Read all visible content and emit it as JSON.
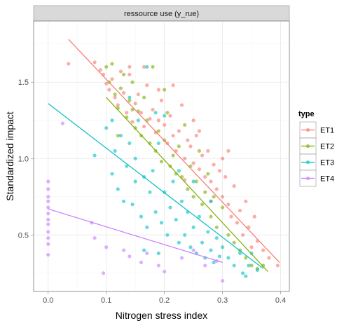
{
  "chart_data": {
    "type": "scatter",
    "facet_title": "ressource use (y_rue)",
    "xlabel": "Nitrogen stress index",
    "ylabel": "Standardized impact",
    "xlim": [
      -0.025,
      0.415
    ],
    "ylim": [
      0.13,
      1.9
    ],
    "x_ticks": [
      0.0,
      0.1,
      0.2,
      0.3,
      0.4
    ],
    "x_tick_labels": [
      "0.0",
      "0.1",
      "0.2",
      "0.3",
      "0.4"
    ],
    "y_ticks": [
      0.5,
      1.0,
      1.5
    ],
    "y_tick_labels": [
      "0.5",
      "1.0",
      "1.5"
    ],
    "grid": true,
    "legend_title": "type",
    "legend_position": "right",
    "series": [
      {
        "name": "ET1",
        "color": "#F8766D",
        "points": [
          [
            0.035,
            1.62
          ],
          [
            0.08,
            1.63
          ],
          [
            0.09,
            1.58
          ],
          [
            0.095,
            1.55
          ],
          [
            0.1,
            1.49
          ],
          [
            0.105,
            1.45
          ],
          [
            0.11,
            1.52
          ],
          [
            0.115,
            1.4
          ],
          [
            0.12,
            1.35
          ],
          [
            0.125,
            1.57
          ],
          [
            0.13,
            1.43
          ],
          [
            0.135,
            1.3
          ],
          [
            0.14,
            1.55
          ],
          [
            0.145,
            1.24
          ],
          [
            0.15,
            1.36
          ],
          [
            0.155,
            1.42
          ],
          [
            0.16,
            1.3
          ],
          [
            0.165,
            1.21
          ],
          [
            0.17,
            1.48
          ],
          [
            0.175,
            1.26
          ],
          [
            0.18,
            1.32
          ],
          [
            0.185,
            1.17
          ],
          [
            0.19,
            1.25
          ],
          [
            0.195,
            1.38
          ],
          [
            0.2,
            1.22
          ],
          [
            0.205,
            1.1
          ],
          [
            0.21,
            1.28
          ],
          [
            0.215,
            1.15
          ],
          [
            0.22,
            1.05
          ],
          [
            0.225,
            1.18
          ],
          [
            0.23,
            1.35
          ],
          [
            0.235,
            1.0
          ],
          [
            0.24,
            1.12
          ],
          [
            0.245,
            1.08
          ],
          [
            0.25,
            0.97
          ],
          [
            0.255,
            1.15
          ],
          [
            0.26,
            0.93
          ],
          [
            0.265,
            1.02
          ],
          [
            0.27,
            0.88
          ],
          [
            0.275,
            1.05
          ],
          [
            0.28,
            0.85
          ],
          [
            0.285,
            0.96
          ],
          [
            0.29,
            0.8
          ],
          [
            0.295,
            0.92
          ],
          [
            0.3,
            0.75
          ],
          [
            0.305,
            0.88
          ],
          [
            0.31,
            0.7
          ],
          [
            0.315,
            0.62
          ],
          [
            0.32,
            0.82
          ],
          [
            0.325,
            0.58
          ],
          [
            0.33,
            0.66
          ],
          [
            0.335,
            0.5
          ],
          [
            0.34,
            0.72
          ],
          [
            0.345,
            0.55
          ],
          [
            0.35,
            0.42
          ],
          [
            0.355,
            0.62
          ],
          [
            0.36,
            0.46
          ],
          [
            0.37,
            0.4
          ],
          [
            0.38,
            0.35
          ],
          [
            0.395,
            0.3
          ],
          [
            0.165,
            1.6
          ],
          [
            0.215,
            1.48
          ],
          [
            0.26,
            1.18
          ],
          [
            0.3,
            1.0
          ],
          [
            0.235,
            0.86
          ],
          [
            0.28,
            0.72
          ],
          [
            0.14,
            1.6
          ],
          [
            0.19,
            1.45
          ],
          [
            0.25,
            1.25
          ],
          [
            0.31,
            1.05
          ]
        ],
        "fit": [
          [
            0.035,
            1.78
          ],
          [
            0.398,
            0.32
          ]
        ]
      },
      {
        "name": "ET2",
        "color": "#7CAE00",
        "points": [
          [
            0.1,
            1.6
          ],
          [
            0.105,
            1.5
          ],
          [
            0.11,
            1.62
          ],
          [
            0.115,
            1.42
          ],
          [
            0.12,
            1.33
          ],
          [
            0.125,
            1.46
          ],
          [
            0.13,
            1.55
          ],
          [
            0.135,
            1.27
          ],
          [
            0.14,
            1.38
          ],
          [
            0.145,
            1.5
          ],
          [
            0.15,
            1.2
          ],
          [
            0.155,
            1.31
          ],
          [
            0.16,
            1.15
          ],
          [
            0.165,
            1.4
          ],
          [
            0.17,
            1.25
          ],
          [
            0.175,
            1.1
          ],
          [
            0.18,
            1.6
          ],
          [
            0.185,
            1.05
          ],
          [
            0.19,
            1.18
          ],
          [
            0.195,
            0.98
          ],
          [
            0.2,
            1.12
          ],
          [
            0.205,
            1.3
          ],
          [
            0.21,
            0.95
          ],
          [
            0.215,
            1.02
          ],
          [
            0.22,
            0.9
          ],
          [
            0.225,
            1.08
          ],
          [
            0.23,
            0.88
          ],
          [
            0.235,
            1.22
          ],
          [
            0.24,
            0.8
          ],
          [
            0.245,
            0.95
          ],
          [
            0.25,
            0.75
          ],
          [
            0.255,
            0.85
          ],
          [
            0.26,
            1.05
          ],
          [
            0.265,
            0.7
          ],
          [
            0.27,
            0.78
          ],
          [
            0.275,
            0.9
          ],
          [
            0.28,
            0.62
          ],
          [
            0.285,
            0.75
          ],
          [
            0.29,
            0.55
          ],
          [
            0.3,
            0.68
          ],
          [
            0.31,
            0.5
          ],
          [
            0.32,
            0.45
          ],
          [
            0.33,
            0.4
          ],
          [
            0.34,
            0.35
          ],
          [
            0.35,
            0.3
          ],
          [
            0.36,
            0.28
          ],
          [
            0.37,
            0.3
          ],
          [
            0.145,
            1.32
          ],
          [
            0.2,
            1.45
          ],
          [
            0.12,
            1.15
          ]
        ],
        "fit": [
          [
            0.1,
            1.4
          ],
          [
            0.378,
            0.26
          ]
        ]
      },
      {
        "name": "ET3",
        "color": "#00BFC4",
        "points": [
          [
            0.08,
            1.02
          ],
          [
            0.1,
            1.2
          ],
          [
            0.11,
            0.9
          ],
          [
            0.115,
            1.05
          ],
          [
            0.12,
            0.8
          ],
          [
            0.125,
            1.15
          ],
          [
            0.13,
            0.72
          ],
          [
            0.135,
            0.95
          ],
          [
            0.14,
            1.1
          ],
          [
            0.145,
            0.7
          ],
          [
            0.15,
            0.85
          ],
          [
            0.155,
            1.25
          ],
          [
            0.16,
            0.62
          ],
          [
            0.165,
            0.88
          ],
          [
            0.17,
            0.55
          ],
          [
            0.175,
            0.78
          ],
          [
            0.18,
            0.92
          ],
          [
            0.185,
            0.65
          ],
          [
            0.19,
            1.1
          ],
          [
            0.195,
            0.58
          ],
          [
            0.2,
            0.78
          ],
          [
            0.205,
            0.5
          ],
          [
            0.21,
            0.68
          ],
          [
            0.215,
            0.85
          ],
          [
            0.22,
            0.6
          ],
          [
            0.225,
            0.45
          ],
          [
            0.23,
            0.72
          ],
          [
            0.235,
            0.5
          ],
          [
            0.24,
            0.65
          ],
          [
            0.245,
            0.42
          ],
          [
            0.25,
            0.55
          ],
          [
            0.255,
            0.38
          ],
          [
            0.26,
            0.62
          ],
          [
            0.265,
            0.45
          ],
          [
            0.27,
            0.35
          ],
          [
            0.275,
            0.52
          ],
          [
            0.28,
            0.4
          ],
          [
            0.285,
            0.32
          ],
          [
            0.29,
            0.48
          ],
          [
            0.295,
            0.36
          ],
          [
            0.3,
            0.42
          ],
          [
            0.31,
            0.35
          ],
          [
            0.32,
            0.3
          ],
          [
            0.33,
            0.38
          ],
          [
            0.335,
            0.25
          ],
          [
            0.34,
            0.23
          ],
          [
            0.345,
            0.3
          ],
          [
            0.35,
            0.38
          ],
          [
            0.36,
            0.27
          ],
          [
            0.17,
            1.6
          ],
          [
            0.14,
            1.4
          ],
          [
            0.185,
            1.3
          ],
          [
            0.2,
            1.28
          ],
          [
            0.11,
            1.25
          ],
          [
            0.15,
            1.0
          ],
          [
            0.25,
            0.85
          ],
          [
            0.28,
            0.72
          ],
          [
            0.225,
            0.92
          ],
          [
            0.165,
            0.4
          ],
          [
            0.19,
            0.38
          ]
        ],
        "fit": [
          [
            0.0,
            1.36
          ],
          [
            0.37,
            0.28
          ]
        ]
      },
      {
        "name": "ET4",
        "color": "#C77CFF",
        "points": [
          [
            0.0,
            0.85
          ],
          [
            0.0,
            0.8
          ],
          [
            0.0,
            0.75
          ],
          [
            0.0,
            0.72
          ],
          [
            0.0,
            0.68
          ],
          [
            0.0,
            0.64
          ],
          [
            0.0,
            0.6
          ],
          [
            0.0,
            0.57
          ],
          [
            0.0,
            0.52
          ],
          [
            0.0,
            0.48
          ],
          [
            0.0,
            0.44
          ],
          [
            0.0,
            0.37
          ],
          [
            0.025,
            1.23
          ],
          [
            0.075,
            0.58
          ],
          [
            0.08,
            0.48
          ],
          [
            0.1,
            0.42
          ],
          [
            0.13,
            0.4
          ],
          [
            0.16,
            0.32
          ],
          [
            0.17,
            0.38
          ],
          [
            0.19,
            0.3
          ],
          [
            0.23,
            0.35
          ],
          [
            0.25,
            0.4
          ],
          [
            0.27,
            0.3
          ],
          [
            0.29,
            0.33
          ],
          [
            0.3,
            0.2
          ],
          [
            0.095,
            0.25
          ],
          [
            0.2,
            0.26
          ],
          [
            0.14,
            0.36
          ]
        ],
        "fit": [
          [
            0.0,
            0.67
          ],
          [
            0.3,
            0.32
          ]
        ]
      }
    ]
  }
}
